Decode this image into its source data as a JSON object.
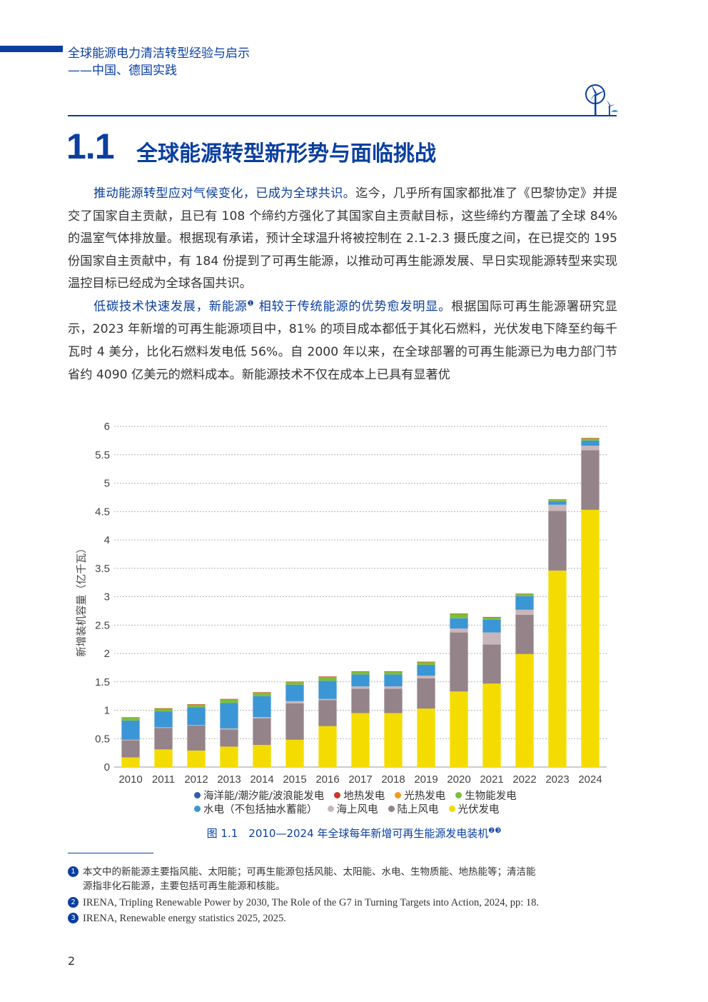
{
  "header": {
    "line1": "全球能源电力清洁转型经验与启示",
    "line2": "——中国、德国实践"
  },
  "section": {
    "number": "1.1",
    "title": "全球能源转型新形势与面临挑战"
  },
  "para1": {
    "highlight": "推动能源转型应对气候变化，已成为全球共识。",
    "text": "迄今，几乎所有国家都批准了《巴黎协定》并提交了国家自主贡献，且已有 108 个缔约方强化了其国家自主贡献目标，这些缔约方覆盖了全球 84% 的温室气体排放量。根据现有承诺，预计全球温升将被控制在 2.1-2.3 摄氏度之间，在已提交的 195 份国家自主贡献中，有 184 份提到了可再生能源，以推动可再生能源发展、早日实现能源转型来实现温控目标已经成为全球各国共识。"
  },
  "para2": {
    "highlight_a": "低碳技术快速发展，新能源",
    "fn_mark": "❶",
    "highlight_b": " 相较于传统能源的优势愈发明显。",
    "text": "根据国际可再生能源署研究显示，2023 年新增的可再生能源项目中，81% 的项目成本都低于其化石燃料，光伏发电下降至约每千瓦时 4 美分，比化石燃料发电低 56%。自 2000 年以来，在全球部署的可再生能源已为电力部门节省约 4090 亿美元的燃料成本。新能源技术不仅在成本上已具有显著优"
  },
  "chart_data": {
    "type": "bar",
    "stacked": true,
    "ylabel": "新增装机容量（亿千瓦）",
    "ylim": [
      0,
      6
    ],
    "yticks": [
      "0",
      "0.5",
      "1",
      "1.5",
      "2",
      "2.5",
      "3",
      "3.5",
      "4",
      "4.5",
      "5",
      "5.5",
      "6"
    ],
    "grid": true,
    "legend_position": "bottom",
    "categories": [
      "2010",
      "2011",
      "2012",
      "2013",
      "2014",
      "2015",
      "2016",
      "2017",
      "2018",
      "2019",
      "2020",
      "2021",
      "2022",
      "2023",
      "2024"
    ],
    "series": [
      {
        "name": "光伏发电",
        "color": "#f5dc00",
        "values": [
          0.17,
          0.31,
          0.29,
          0.36,
          0.39,
          0.48,
          0.72,
          0.95,
          0.95,
          1.03,
          1.33,
          1.47,
          1.99,
          3.46,
          4.53
        ]
      },
      {
        "name": "陆上风电",
        "color": "#948388",
        "values": [
          0.3,
          0.38,
          0.44,
          0.3,
          0.47,
          0.64,
          0.46,
          0.43,
          0.43,
          0.53,
          1.04,
          0.69,
          0.69,
          1.05,
          1.05
        ]
      },
      {
        "name": "海上风电",
        "color": "#c9b6bb",
        "values": [
          0.01,
          0.01,
          0.01,
          0.02,
          0.02,
          0.04,
          0.02,
          0.04,
          0.04,
          0.05,
          0.07,
          0.21,
          0.09,
          0.11,
          0.08
        ]
      },
      {
        "name": "水电（不包括抽水蓄能）",
        "color": "#3b96d6",
        "values": [
          0.34,
          0.28,
          0.31,
          0.45,
          0.37,
          0.29,
          0.32,
          0.21,
          0.21,
          0.19,
          0.18,
          0.23,
          0.24,
          0.06,
          0.09
        ]
      },
      {
        "name": "生物能发电",
        "color": "#7cbf3a",
        "values": [
          0.05,
          0.05,
          0.05,
          0.06,
          0.06,
          0.05,
          0.07,
          0.05,
          0.05,
          0.05,
          0.08,
          0.04,
          0.04,
          0.03,
          0.04
        ]
      },
      {
        "name": "光热发电",
        "color": "#f39a1e",
        "values": [
          0.003,
          0.003,
          0.003,
          0.006,
          0.003,
          0.001,
          0.001,
          0.001,
          0.001,
          0.001,
          0.001,
          0.001,
          0.001,
          0.001,
          0.001
        ]
      },
      {
        "name": "地热发电",
        "color": "#c9372b",
        "values": [
          0.002,
          0.002,
          0.002,
          0.003,
          0.004,
          0.003,
          0.004,
          0.005,
          0.005,
          0.004,
          0.002,
          0.002,
          0.002,
          0.003,
          0.004
        ]
      },
      {
        "name": "海洋能/潮汐能/波浪能发电",
        "color": "#2e5fa8",
        "values": [
          0,
          0,
          0,
          0,
          0,
          0,
          0,
          0,
          0,
          0,
          0,
          0,
          0,
          0,
          0
        ]
      }
    ]
  },
  "legend": {
    "row1": [
      {
        "label": "海洋能/潮汐能/波浪能发电",
        "color": "#2e5fa8"
      },
      {
        "label": "地热发电",
        "color": "#c9372b"
      },
      {
        "label": "光热发电",
        "color": "#f39a1e"
      },
      {
        "label": "生物能发电",
        "color": "#7cbf3a"
      }
    ],
    "row2": [
      {
        "label": "水电（不包括抽水蓄能）",
        "color": "#3b96d6"
      },
      {
        "label": "海上风电",
        "color": "#c9b6bb"
      },
      {
        "label": "陆上风电",
        "color": "#948388"
      },
      {
        "label": "光伏发电",
        "color": "#f5dc00"
      }
    ]
  },
  "figure": {
    "caption": "图 1.1　2010—2024 年全球每年新增可再生能源发电装机",
    "marks": "❷❸"
  },
  "footnotes": [
    {
      "num": "1",
      "line_a": "本文中的新能源主要指风能、太阳能；可再生能源包括风能、太阳能、水电、生物质能、地热能等；清洁能",
      "line_b": "源指非化石能源，主要包括可再生能源和核能。"
    },
    {
      "num": "2",
      "text": "IRENA, Tripling Renewable Power by 2030, The Role of the G7 in Turning Targets into Action, 2024, pp: 18."
    },
    {
      "num": "3",
      "text": "IRENA, Renewable energy statistics 2025, 2025."
    }
  ],
  "page_number": "2"
}
